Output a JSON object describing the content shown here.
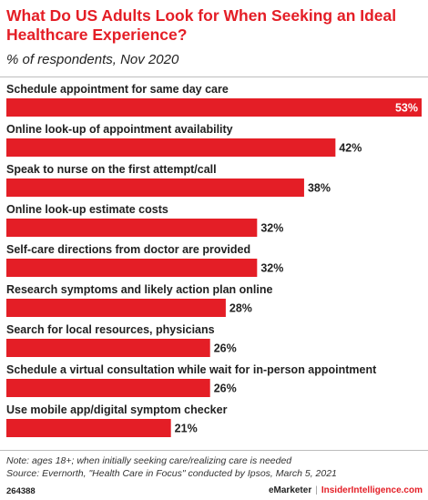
{
  "title": "What Do US Adults Look for When Seeking an Ideal Healthcare Experience?",
  "subtitle": "% of respondents, Nov 2020",
  "chart_data": {
    "type": "bar",
    "orientation": "horizontal",
    "categories": [
      "Schedule appointment for same day care",
      "Online look-up of appointment availability",
      "Speak to nurse on the first attempt/call",
      "Online look-up estimate costs",
      "Self-care directions from doctor are provided",
      "Research symptoms and likely action plan online",
      "Search for local resources, physicians",
      "Schedule a virtual consultation while wait for in-person appointment",
      "Use mobile app/digital symptom checker"
    ],
    "values": [
      53,
      42,
      38,
      32,
      32,
      28,
      26,
      26,
      21
    ],
    "value_labels": [
      "53%",
      "42%",
      "38%",
      "32%",
      "32%",
      "28%",
      "26%",
      "26%",
      "21%"
    ],
    "xlim": [
      0,
      53
    ],
    "bar_color": "#e41e26"
  },
  "note": "Note: ages 18+; when initially seeking care/realizing care is needed",
  "source": "Source: Evernorth, \"Health Care in Focus\" conducted by Ipsos, March 5, 2021",
  "footer": {
    "chart_id": "264388",
    "brand": "eMarketer",
    "separator": "|",
    "site": "InsiderIntelligence.com"
  },
  "colors": {
    "accent": "#e41e26",
    "text": "#222222"
  }
}
